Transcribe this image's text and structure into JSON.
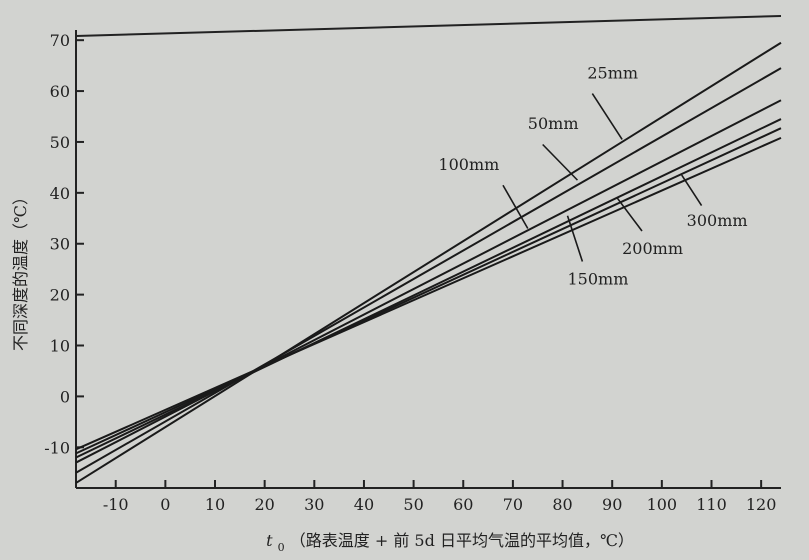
{
  "chart_data": {
    "type": "line",
    "xlabel_var": "t",
    "xlabel_sub": "0",
    "xlabel_text": "（路表温度 + 前 5d 日平均气温的平均值，℃）",
    "ylabel": "不同深度的温度（℃）",
    "xlim": [
      -18,
      124
    ],
    "ylim": [
      -18,
      72
    ],
    "xticks": [
      -10,
      0,
      10,
      20,
      30,
      40,
      50,
      60,
      70,
      80,
      90,
      100,
      110,
      120
    ],
    "yticks": [
      -10,
      0,
      10,
      20,
      30,
      40,
      50,
      60,
      70
    ],
    "grid": false,
    "series": [
      {
        "name": "25mm",
        "x": [
          -18,
          124
        ],
        "y": [
          -17.0,
          69.5
        ]
      },
      {
        "name": "50mm",
        "x": [
          -18,
          124
        ],
        "y": [
          -15.0,
          64.5
        ]
      },
      {
        "name": "100mm",
        "x": [
          -18,
          124
        ],
        "y": [
          -13.0,
          58.2
        ]
      },
      {
        "name": "150mm",
        "x": [
          -18,
          124
        ],
        "y": [
          -12.0,
          54.5
        ]
      },
      {
        "name": "200mm",
        "x": [
          -18,
          124
        ],
        "y": [
          -11.2,
          52.7
        ]
      },
      {
        "name": "300mm",
        "x": [
          -18,
          124
        ],
        "y": [
          -10.4,
          50.8
        ]
      }
    ],
    "annotations": [
      {
        "text": "25mm",
        "line_x": 93,
        "label": [
          85,
          62.5
        ],
        "pointer": [
          [
            92,
            50.5
          ],
          [
            86,
            59.5
          ]
        ]
      },
      {
        "text": "50mm",
        "line_x": 83,
        "label": [
          73,
          52.5
        ],
        "pointer": [
          [
            83,
            42.5
          ],
          [
            76,
            49.5
          ]
        ]
      },
      {
        "text": "100mm",
        "line_x": 73,
        "label": [
          55,
          44.5
        ],
        "pointer": [
          [
            73,
            33
          ],
          [
            68,
            41.5
          ]
        ]
      },
      {
        "text": "150mm",
        "line_x": 84,
        "label": [
          81,
          22.0
        ],
        "pointer": [
          [
            81,
            35.5
          ],
          [
            84,
            26.5
          ]
        ]
      },
      {
        "text": "200mm",
        "line_x": 94,
        "label": [
          92,
          28.0
        ],
        "pointer": [
          [
            91,
            39
          ],
          [
            96,
            32.5
          ]
        ]
      },
      {
        "text": "300mm",
        "line_x": 105,
        "label": [
          105,
          33.5
        ],
        "pointer": [
          [
            104,
            43.5
          ],
          [
            108,
            37.5
          ]
        ]
      }
    ]
  }
}
